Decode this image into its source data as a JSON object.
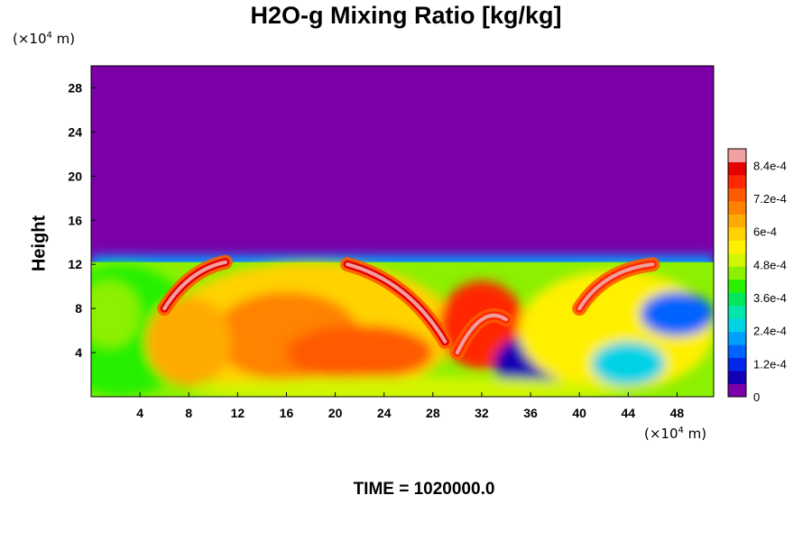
{
  "chart_data": {
    "type": "heatmap",
    "title": "H2O-g Mixing Ratio [kg/kg]",
    "ylabel": "Height",
    "xlabel": "",
    "x_unit": {
      "prefix": "(×10",
      "exp": "4",
      "suffix": " m)"
    },
    "y_unit": {
      "prefix": "(×10",
      "exp": "4",
      "suffix": " m)"
    },
    "xlim": [
      0,
      51
    ],
    "ylim": [
      0,
      30
    ],
    "x_ticks": [
      "4",
      "8",
      "12",
      "16",
      "20",
      "24",
      "28",
      "32",
      "36",
      "40",
      "44",
      "48"
    ],
    "y_ticks": [
      "4",
      "8",
      "12",
      "16",
      "20",
      "24",
      "28"
    ],
    "x_tick_values": [
      4,
      8,
      12,
      16,
      20,
      24,
      28,
      32,
      36,
      40,
      44,
      48
    ],
    "y_tick_values": [
      4,
      8,
      12,
      16,
      20,
      24,
      28
    ],
    "colorbar": {
      "labels": [
        "0",
        "1.2e-4",
        "2.4e-4",
        "3.6e-4",
        "4.8e-4",
        "6e-4",
        "7.2e-4",
        "8.4e-4"
      ],
      "label_values": [
        0,
        0.00012,
        0.00024,
        0.00036,
        0.00048,
        0.0006,
        0.00072,
        0.00084
      ],
      "range": [
        0,
        0.0009
      ],
      "colors": [
        "#7b00a8",
        "#1400b4",
        "#0028e6",
        "#0064ff",
        "#00a0ff",
        "#00d2e6",
        "#00e6aa",
        "#00e65a",
        "#28f000",
        "#8cf000",
        "#d2f500",
        "#fff000",
        "#ffd200",
        "#ffaa00",
        "#ff8200",
        "#ff5a00",
        "#ff2800",
        "#e60000",
        "#f0a0a0"
      ]
    },
    "background_value": 0,
    "fields": [
      {
        "x": 2.5,
        "y": 6,
        "rx": 6,
        "ry": 6,
        "value": 0.00042
      },
      {
        "x": 1.5,
        "y": 7.5,
        "rx": 2.5,
        "ry": 3,
        "value": 0.00046
      },
      {
        "x": 18,
        "y": 6,
        "rx": 12,
        "ry": 6.2,
        "value": 0.0006
      },
      {
        "x": 16,
        "y": 5.5,
        "rx": 6,
        "ry": 4,
        "value": 0.0007
      },
      {
        "x": 22,
        "y": 4,
        "rx": 6,
        "ry": 2.5,
        "value": 0.00074
      },
      {
        "x": 8,
        "y": 5,
        "rx": 3.5,
        "ry": 4,
        "value": 0.00066
      },
      {
        "x": 32,
        "y": 6.5,
        "rx": 3.5,
        "ry": 4,
        "value": 0.0008
      },
      {
        "x": 36,
        "y": 3,
        "rx": 3,
        "ry": 2.5,
        "value": 8e-05
      },
      {
        "x": 43,
        "y": 6,
        "rx": 8,
        "ry": 5.5,
        "value": 0.00055
      },
      {
        "x": 44,
        "y": 3,
        "rx": 3,
        "ry": 2,
        "value": 0.00024
      },
      {
        "x": 48,
        "y": 7.5,
        "rx": 3,
        "ry": 2,
        "value": 0.00018
      },
      {
        "x": 26,
        "y": 0.6,
        "rx": 18,
        "ry": 1.2,
        "value": 0.0005
      }
    ],
    "plumes": [
      {
        "points": [
          [
            6,
            8
          ],
          [
            8,
            11.5
          ],
          [
            11,
            12.2
          ]
        ],
        "value": 0.00088
      },
      {
        "points": [
          [
            21,
            12
          ],
          [
            26,
            10.5
          ],
          [
            29,
            5
          ]
        ],
        "value": 0.00088
      },
      {
        "points": [
          [
            30,
            4
          ],
          [
            32,
            8.5
          ],
          [
            34,
            7
          ]
        ],
        "value": 0.00086
      },
      {
        "points": [
          [
            40,
            8
          ],
          [
            42,
            11.5
          ],
          [
            46,
            12
          ]
        ],
        "value": 0.00086
      }
    ],
    "time": "TIME = 1020000.0"
  }
}
